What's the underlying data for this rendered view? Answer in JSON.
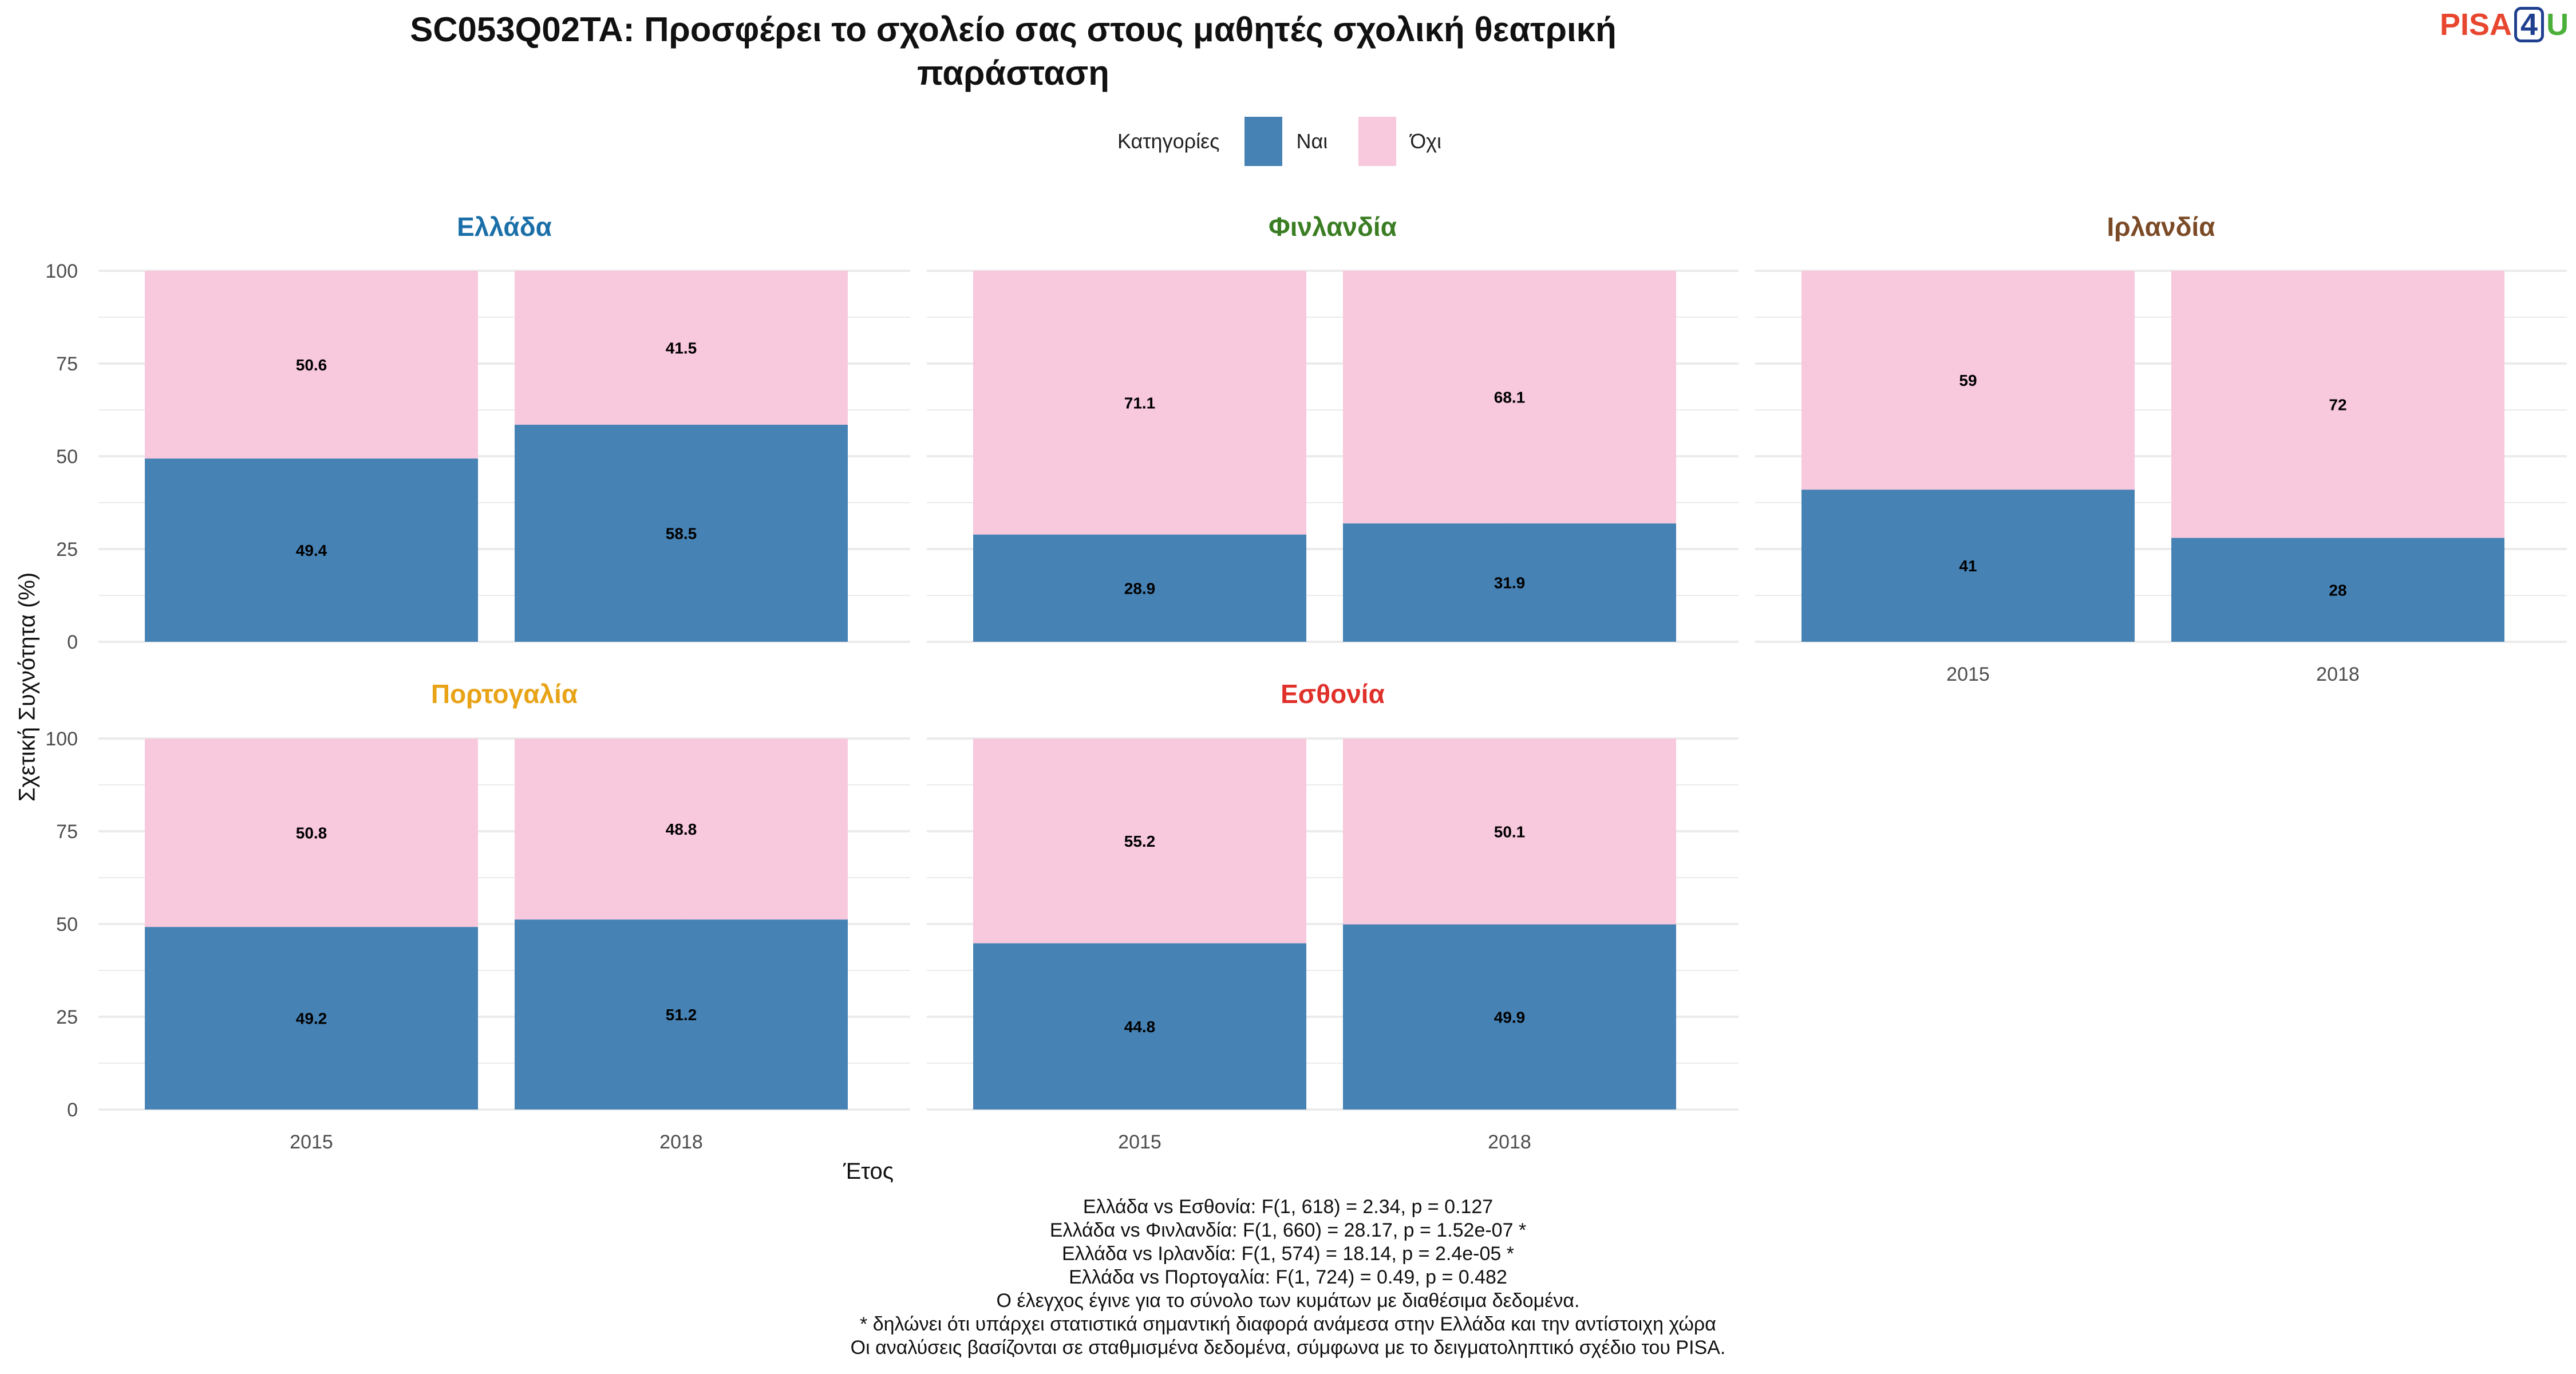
{
  "header": {
    "title_line1": "SC053Q02TA: Προσφέρει το σχολείο σας στους μαθητές σχολική θεατρική",
    "title_line2": "παράσταση"
  },
  "logo": {
    "part1": "PISA",
    "part2": "4",
    "part3": "U"
  },
  "legend": {
    "title": "Κατηγορίες",
    "items": [
      "Ναι",
      "Όχι"
    ]
  },
  "colors": {
    "yes": "#4682b4",
    "no": "#f8c8dc",
    "grid": "#ebebeb",
    "axis_text": "#4d4d4d"
  },
  "footnotes": [
    "Ελλάδα vs Εσθονία: F(1, 618) = 2.34, p = 0.127",
    "Ελλάδα vs Φινλανδία: F(1, 660) = 28.17, p = 1.52e-07 *",
    "Ελλάδα vs Ιρλανδία: F(1, 574) = 18.14, p = 2.4e-05 *",
    "Ελλάδα vs Πορτογαλία: F(1, 724) = 0.49, p = 0.482",
    "Ο έλεγχος έγινε για το σύνολο των κυμάτων με διαθέσιμα δεδομένα.",
    "* δηλώνει ότι υπάρχει στατιστικά σημαντική διαφορά ανάμεσα στην Ελλάδα και την αντίστοιχη χώρα",
    "Οι αναλύσεις βασίζονται σε σταθμισμένα δεδομένα, σύμφωνα με το δειγματοληπτικό σχέδιο του PISA."
  ],
  "chart_data": {
    "type": "bar",
    "stacked": true,
    "xlabel": "Έτος",
    "ylabel": "Σχετική Συχνότητα (%)",
    "ylim": [
      0,
      100
    ],
    "yticks": [
      0,
      25,
      50,
      75,
      100
    ],
    "categories": [
      "2015",
      "2018"
    ],
    "panels": [
      {
        "name": "Ελλάδα",
        "color": "#1a6fa8",
        "series": [
          {
            "name": "Ναι",
            "values": [
              49.4,
              58.5
            ]
          },
          {
            "name": "Όχι",
            "values": [
              50.6,
              41.5
            ]
          }
        ],
        "labels": {
          "yes": [
            "49.4",
            "58.5"
          ],
          "no": [
            "50.6",
            "41.5"
          ]
        }
      },
      {
        "name": "Φινλανδία",
        "color": "#3a7d23",
        "series": [
          {
            "name": "Ναι",
            "values": [
              28.9,
              31.9
            ]
          },
          {
            "name": "Όχι",
            "values": [
              71.1,
              68.1
            ]
          }
        ],
        "labels": {
          "yes": [
            "28.9",
            "31.9"
          ],
          "no": [
            "71.1",
            "68.1"
          ]
        }
      },
      {
        "name": "Ιρλανδία",
        "color": "#7b4a26",
        "series": [
          {
            "name": "Ναι",
            "values": [
              41,
              28
            ]
          },
          {
            "name": "Όχι",
            "values": [
              59,
              72
            ]
          }
        ],
        "labels": {
          "yes": [
            "41",
            "28"
          ],
          "no": [
            "59",
            "72"
          ]
        }
      },
      {
        "name": "Πορτογαλία",
        "color": "#e8a317",
        "series": [
          {
            "name": "Ναι",
            "values": [
              49.2,
              51.2
            ]
          },
          {
            "name": "Όχι",
            "values": [
              50.8,
              48.8
            ]
          }
        ],
        "labels": {
          "yes": [
            "49.2",
            "51.2"
          ],
          "no": [
            "50.8",
            "48.8"
          ]
        }
      },
      {
        "name": "Εσθονία",
        "color": "#e0302a",
        "series": [
          {
            "name": "Ναι",
            "values": [
              44.8,
              49.9
            ]
          },
          {
            "name": "Όχι",
            "values": [
              55.2,
              50.1
            ]
          }
        ],
        "labels": {
          "yes": [
            "44.8",
            "49.9"
          ],
          "no": [
            "55.2",
            "50.1"
          ]
        }
      }
    ]
  }
}
